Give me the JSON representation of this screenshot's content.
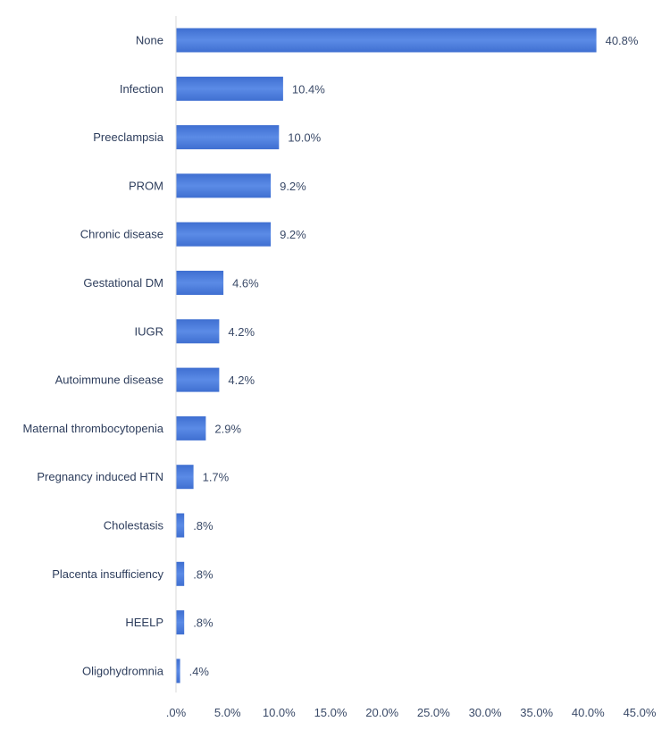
{
  "chart_data": {
    "type": "bar",
    "orientation": "horizontal",
    "categories": [
      "None",
      "Infection",
      "Preeclampsia",
      "PROM",
      "Chronic disease",
      "Gestational DM",
      "IUGR",
      "Autoimmune disease",
      "Maternal thrombocytopenia",
      "Pregnancy induced HTN",
      "Cholestasis",
      "Placenta insufficiency",
      "HEELP",
      "Oligohydromnia"
    ],
    "values": [
      40.8,
      10.4,
      10.0,
      9.2,
      9.2,
      4.6,
      4.2,
      4.2,
      2.9,
      1.7,
      0.8,
      0.8,
      0.8,
      0.4
    ],
    "value_labels": [
      "40.8%",
      "10.4%",
      "10.0%",
      "9.2%",
      "9.2%",
      "4.6%",
      "4.2%",
      "4.2%",
      "2.9%",
      "1.7%",
      ".8%",
      ".8%",
      ".8%",
      ".4%"
    ],
    "x_ticks": [
      0,
      5,
      10,
      15,
      20,
      25,
      30,
      35,
      40,
      45
    ],
    "x_tick_labels": [
      ".0%",
      "5.0%",
      "10.0%",
      "15.0%",
      "20.0%",
      "25.0%",
      "30.0%",
      "35.0%",
      "40.0%",
      "45.0%"
    ],
    "xlim": [
      0,
      45
    ],
    "title": "",
    "xlabel": "",
    "ylabel": "",
    "grid": false,
    "legend": "none",
    "bar_color": "#3f6fd1",
    "bar_color_light": "#5b8be6"
  }
}
